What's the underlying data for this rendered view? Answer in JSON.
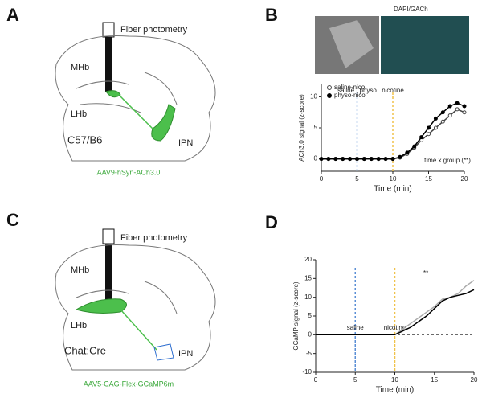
{
  "panels": [
    {
      "letter": "A",
      "labels": [
        "Fiber photometry",
        "MHb",
        "LHb",
        "C57/B6",
        "IPN",
        "AAV9-hSyn-ACh3.0"
      ]
    },
    {
      "letter": "B",
      "labels": [
        "DAPI/GACh"
      ]
    },
    {
      "letter": "C",
      "labels": [
        "Fiber photometry",
        "MHb",
        "LHb",
        "Chat:Cre",
        "IPN",
        "AAV5-CAG-Flex-GCaMP6m"
      ]
    },
    {
      "letter": "D",
      "labels": []
    }
  ],
  "chart_data": [
    {
      "type": "line",
      "xlabel": "Time (min)",
      "ylabel": "ACh3.0 signal (z-score)",
      "x": [
        0,
        1,
        2,
        3,
        4,
        5,
        6,
        7,
        8,
        9,
        10,
        11,
        12,
        13,
        14,
        15,
        16,
        17,
        18,
        19,
        20
      ],
      "series": [
        {
          "name": "saline-nico",
          "color": "#444444",
          "marker": "open",
          "values": [
            0,
            0,
            0,
            0,
            0,
            0,
            0,
            0,
            0,
            0,
            0,
            0.2,
            0.8,
            1.8,
            3,
            4,
            5,
            6,
            7,
            8,
            7.5
          ]
        },
        {
          "name": "physo-nico",
          "color": "#000000",
          "marker": "filled",
          "values": [
            0,
            0,
            0,
            0,
            0,
            0,
            0,
            0,
            0,
            0,
            0,
            0.3,
            1,
            2,
            3.5,
            5,
            6.5,
            7.5,
            8.5,
            9,
            8.5
          ]
        }
      ],
      "events": [
        {
          "x": 5,
          "label": "saline | physo",
          "color": "#8fb4e3"
        },
        {
          "x": 10,
          "label": "nicotine",
          "color": "#f0c24a"
        }
      ],
      "annotations": [
        "time x group (**)"
      ],
      "xlim": [
        0,
        20
      ],
      "xticks": [
        0,
        5,
        10,
        15,
        20
      ],
      "ylim": [
        -2,
        12
      ],
      "yticks": [
        0,
        5,
        10
      ],
      "zero_line": false
    },
    {
      "type": "line",
      "xlabel": "Time (min)",
      "ylabel": "GCaMP signal (z-score)",
      "x": [
        0,
        1,
        2,
        3,
        4,
        5,
        6,
        7,
        8,
        9,
        10,
        11,
        12,
        13,
        14,
        15,
        16,
        17,
        18,
        19,
        20
      ],
      "series": [
        {
          "color": "#aaaaaa",
          "values": [
            0,
            0,
            0,
            0,
            0,
            0,
            0,
            0,
            0,
            0,
            0,
            1.5,
            3,
            4.5,
            6,
            7.5,
            9.5,
            10,
            11,
            13,
            14.5
          ]
        },
        {
          "color": "#000000",
          "values": [
            0,
            0,
            0,
            0,
            0,
            0,
            0,
            0,
            0,
            0,
            0,
            1,
            2,
            3.5,
            5,
            7,
            9,
            10,
            10.5,
            11,
            12
          ]
        }
      ],
      "events": [
        {
          "x": 5,
          "label": "saline",
          "color": "#5b8fd6"
        },
        {
          "x": 10,
          "label": "nicotine",
          "color": "#f0c24a"
        }
      ],
      "annotations": [
        "**"
      ],
      "xlim": [
        0,
        20
      ],
      "xticks": [
        0,
        5,
        10,
        15,
        20
      ],
      "ylim": [
        -10,
        20
      ],
      "yticks": [
        -10,
        -5,
        0,
        5,
        10,
        15,
        20
      ],
      "zero_line": true
    }
  ]
}
